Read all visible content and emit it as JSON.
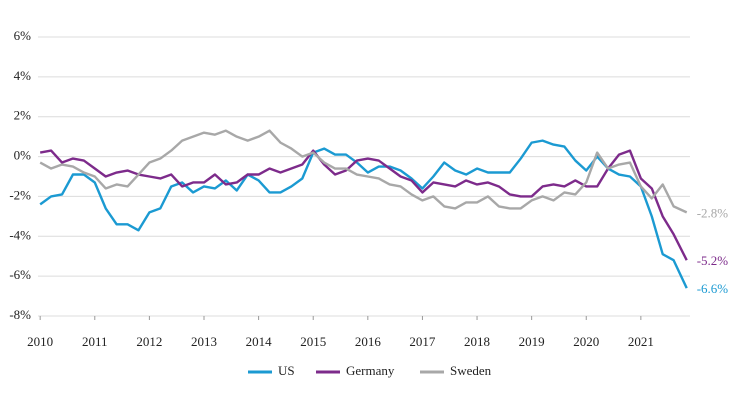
{
  "chart_data": {
    "type": "line",
    "x": [
      2010,
      2010.2,
      2010.4,
      2010.6,
      2010.8,
      2011,
      2011.2,
      2011.4,
      2011.6,
      2011.8,
      2012,
      2012.2,
      2012.4,
      2012.6,
      2012.8,
      2013,
      2013.2,
      2013.4,
      2013.6,
      2013.8,
      2014,
      2014.2,
      2014.4,
      2014.6,
      2014.8,
      2015,
      2015.2,
      2015.4,
      2015.6,
      2015.8,
      2016,
      2016.2,
      2016.4,
      2016.6,
      2016.8,
      2017,
      2017.2,
      2017.4,
      2017.6,
      2017.8,
      2018,
      2018.2,
      2018.4,
      2018.6,
      2018.8,
      2019,
      2019.2,
      2019.4,
      2019.6,
      2019.8,
      2020,
      2020.2,
      2020.4,
      2020.6,
      2020.8,
      2021,
      2021.2,
      2021.4,
      2021.6,
      2021.84
    ],
    "series": [
      {
        "name": "US",
        "color": "#1b9ad2",
        "values": [
          -2.4,
          -2.0,
          -1.9,
          -0.9,
          -0.9,
          -1.3,
          -2.6,
          -3.4,
          -3.4,
          -3.7,
          -2.8,
          -2.6,
          -1.5,
          -1.3,
          -1.8,
          -1.5,
          -1.6,
          -1.2,
          -1.7,
          -0.9,
          -1.2,
          -1.8,
          -1.8,
          -1.5,
          -1.1,
          0.2,
          0.4,
          0.1,
          0.1,
          -0.3,
          -0.8,
          -0.5,
          -0.5,
          -0.7,
          -1.1,
          -1.6,
          -1.0,
          -0.3,
          -0.7,
          -0.9,
          -0.6,
          -0.8,
          -0.8,
          -0.8,
          -0.1,
          0.7,
          0.8,
          0.6,
          0.5,
          -0.2,
          -0.7,
          0.0,
          -0.6,
          -0.9,
          -1.0,
          -1.5,
          -3.0,
          -4.9,
          -5.2,
          -6.6
        ],
        "value_labels": [
          null,
          null,
          null,
          null,
          null,
          null,
          null,
          null,
          null,
          null,
          null,
          null,
          null,
          null,
          null,
          null,
          null,
          null,
          null,
          null,
          null,
          null,
          null,
          null,
          null,
          null,
          null,
          null,
          null,
          null,
          null,
          null,
          null,
          null,
          null,
          null,
          null,
          null,
          null,
          null,
          null,
          null,
          null,
          null,
          null,
          null,
          null,
          null,
          null,
          null,
          null,
          null,
          null,
          null,
          null,
          null,
          null,
          null,
          null,
          "-6.6%"
        ]
      },
      {
        "name": "Germany",
        "color": "#7d2b8b",
        "values": [
          0.2,
          0.3,
          -0.3,
          -0.1,
          -0.2,
          -0.6,
          -1.0,
          -0.8,
          -0.7,
          -0.9,
          -1.0,
          -1.1,
          -0.9,
          -1.5,
          -1.3,
          -1.3,
          -0.9,
          -1.4,
          -1.3,
          -0.9,
          -0.9,
          -0.6,
          -0.8,
          -0.6,
          -0.4,
          0.3,
          -0.4,
          -0.9,
          -0.7,
          -0.2,
          -0.1,
          -0.2,
          -0.6,
          -1.0,
          -1.2,
          -1.8,
          -1.3,
          -1.4,
          -1.5,
          -1.2,
          -1.4,
          -1.3,
          -1.5,
          -1.9,
          -2.0,
          -2.0,
          -1.5,
          -1.4,
          -1.5,
          -1.2,
          -1.5,
          -1.5,
          -0.6,
          0.1,
          0.3,
          -1.1,
          -1.6,
          -3.0,
          -3.9,
          -5.2
        ],
        "value_labels": [
          null,
          null,
          null,
          null,
          null,
          null,
          null,
          null,
          null,
          null,
          null,
          null,
          null,
          null,
          null,
          null,
          null,
          null,
          null,
          null,
          null,
          null,
          null,
          null,
          null,
          null,
          null,
          null,
          null,
          null,
          null,
          null,
          null,
          null,
          null,
          null,
          null,
          null,
          null,
          null,
          null,
          null,
          null,
          null,
          null,
          null,
          null,
          null,
          null,
          null,
          null,
          null,
          null,
          null,
          null,
          null,
          null,
          null,
          null,
          "-5.2%"
        ]
      },
      {
        "name": "Sweden",
        "color": "#a8a8a8",
        "values": [
          -0.3,
          -0.6,
          -0.4,
          -0.5,
          -0.8,
          -1.0,
          -1.6,
          -1.4,
          -1.5,
          -0.9,
          -0.3,
          -0.1,
          0.3,
          0.8,
          1.0,
          1.2,
          1.1,
          1.3,
          1.0,
          0.8,
          1.0,
          1.3,
          0.7,
          0.4,
          0.0,
          0.2,
          -0.3,
          -0.6,
          -0.6,
          -0.9,
          -1.0,
          -1.1,
          -1.4,
          -1.5,
          -1.9,
          -2.2,
          -2.0,
          -2.5,
          -2.6,
          -2.3,
          -2.3,
          -2.0,
          -2.5,
          -2.6,
          -2.6,
          -2.2,
          -2.0,
          -2.2,
          -1.8,
          -1.9,
          -1.3,
          0.2,
          -0.6,
          -0.4,
          -0.3,
          -1.5,
          -2.1,
          -1.4,
          -2.5,
          -2.8
        ],
        "value_labels": [
          null,
          null,
          null,
          null,
          null,
          null,
          null,
          null,
          null,
          null,
          null,
          null,
          null,
          null,
          null,
          null,
          null,
          null,
          null,
          null,
          null,
          null,
          null,
          null,
          null,
          null,
          null,
          null,
          null,
          null,
          null,
          null,
          null,
          null,
          null,
          null,
          null,
          null,
          null,
          null,
          null,
          null,
          null,
          null,
          null,
          null,
          null,
          null,
          null,
          null,
          null,
          null,
          null,
          null,
          null,
          null,
          null,
          null,
          null,
          "-2.8%"
        ]
      }
    ],
    "xlim": [
      2009.96,
      2021.9
    ],
    "xticks": [
      2010,
      2011,
      2012,
      2013,
      2014,
      2015,
      2016,
      2017,
      2018,
      2019,
      2020,
      2021
    ],
    "ylim": [
      -8,
      6
    ],
    "yticks": [
      {
        "value": -8,
        "label": "-8%"
      },
      {
        "value": -6,
        "label": "-6%"
      },
      {
        "value": -4,
        "label": "-4%"
      },
      {
        "value": -2,
        "label": "-2%"
      },
      {
        "value": 0,
        "label": "0%"
      },
      {
        "value": 2,
        "label": "2%"
      },
      {
        "value": 4,
        "label": "4%"
      },
      {
        "value": 6,
        "label": "6%"
      }
    ],
    "grid": true,
    "legend": "bottom"
  }
}
